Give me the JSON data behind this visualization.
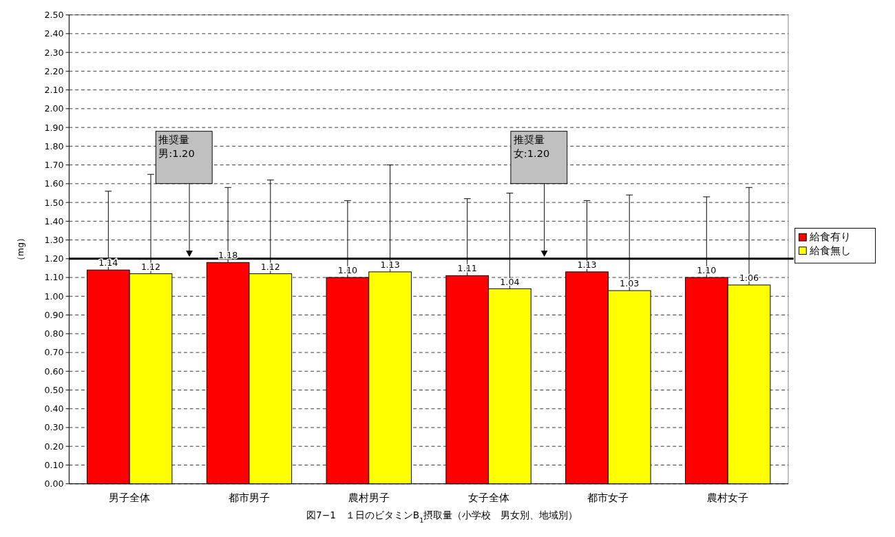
{
  "chart_data": {
    "type": "bar",
    "title": "図7−1　１日のビタミンB$_{1}$摂取量（小学校　男女別、地域別）",
    "ylabel": "（mg）",
    "categories": [
      "男子全体",
      "都市男子",
      "農村男子",
      "女子全体",
      "都市女子",
      "農村女子"
    ],
    "series": [
      {
        "name": "給食有り",
        "color": "#ff0000",
        "values": [
          1.14,
          1.18,
          1.1,
          1.11,
          1.13,
          1.1
        ],
        "value_labels": [
          "1.14",
          "1.18",
          "1.10",
          "1.11",
          "1.13",
          "1.10"
        ],
        "errors": [
          [
            1.14,
            1.56
          ],
          [
            1.18,
            1.58
          ],
          [
            1.1,
            1.51
          ],
          [
            1.11,
            1.52
          ],
          [
            1.13,
            1.51
          ],
          [
            1.1,
            1.53
          ]
        ]
      },
      {
        "name": "給食無し",
        "color": "#ffff00",
        "values": [
          1.12,
          1.12,
          1.13,
          1.04,
          1.03,
          1.06
        ],
        "value_labels": [
          "1.12",
          "1.12",
          "1.13",
          "1.04",
          "1.03",
          "1.06"
        ],
        "errors": [
          [
            1.12,
            1.65
          ],
          [
            1.12,
            1.62
          ],
          [
            1.13,
            1.7
          ],
          [
            1.04,
            1.55
          ],
          [
            1.03,
            1.54
          ],
          [
            1.06,
            1.58
          ]
        ]
      }
    ],
    "ylim": [
      0,
      2.5
    ],
    "yticks": [
      {
        "value": 0,
        "label": "0.00"
      },
      {
        "value": 0.1,
        "label": "0.10"
      },
      {
        "value": 0.2,
        "label": "0.20"
      },
      {
        "value": 0.3,
        "label": "0.30"
      },
      {
        "value": 0.4,
        "label": "0.40"
      },
      {
        "value": 0.5,
        "label": "0.50"
      },
      {
        "value": 0.6,
        "label": "0.60"
      },
      {
        "value": 0.7,
        "label": "0.70"
      },
      {
        "value": 0.8,
        "label": "0.80"
      },
      {
        "value": 0.9,
        "label": "0.90"
      },
      {
        "value": 1,
        "label": "1.00"
      },
      {
        "value": 1.1,
        "label": "1.10"
      },
      {
        "value": 1.2,
        "label": "1.20"
      },
      {
        "value": 1.3,
        "label": "1.30"
      },
      {
        "value": 1.4,
        "label": "1.40"
      },
      {
        "value": 1.5,
        "label": "1.50"
      },
      {
        "value": 1.6,
        "label": "1.60"
      },
      {
        "value": 1.7,
        "label": "1.70"
      },
      {
        "value": 1.8,
        "label": "1.80"
      },
      {
        "value": 1.9,
        "label": "1.90"
      },
      {
        "value": 2,
        "label": "2.00"
      },
      {
        "value": 2.1,
        "label": "2.10"
      },
      {
        "value": 2.2,
        "label": "2.20"
      },
      {
        "value": 2.3,
        "label": "2.30"
      },
      {
        "value": 2.4,
        "label": "2.40"
      },
      {
        "value": 2.5,
        "label": "2.50"
      }
    ],
    "ref_lines": [
      {
        "axis": "y",
        "value": 1.2,
        "color": "#000000"
      }
    ],
    "annotations": [
      "推奨量男:1.20",
      "推奨量女:1.20"
    ],
    "grid": "y",
    "line_style": "dashed",
    "legend": "right"
  }
}
